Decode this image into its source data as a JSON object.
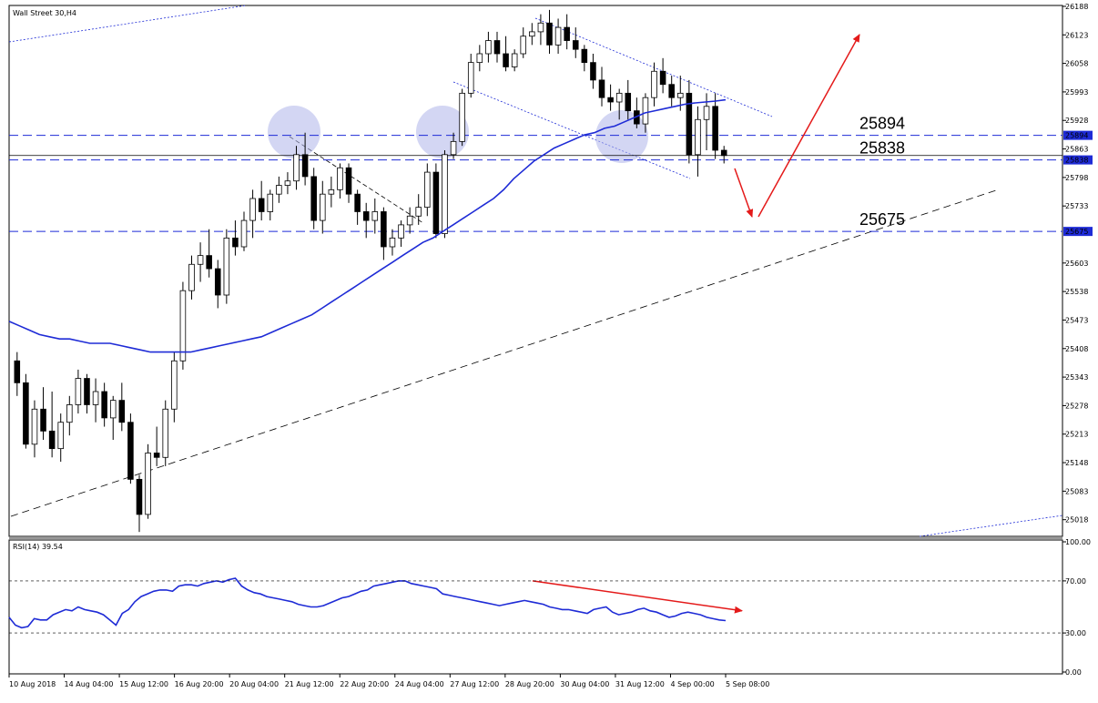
{
  "title": "Wall Street 30,H4",
  "rsi_title": "RSI(14) 39.54",
  "colors": {
    "candle_up": "#ffffff",
    "candle_down": "#000000",
    "ma": "#1e2bd6",
    "rsi": "#1e2bd6",
    "level": "#1e2bd6",
    "price_line": "#000000",
    "arrow": "#e41a1a",
    "circle": "#aeb4ea",
    "tag_bg": "#1e2bd6"
  },
  "levels": [
    {
      "value": 25894,
      "label": "25894",
      "tag": "25894"
    },
    {
      "value": 25838,
      "label": "25838",
      "tag": "25838"
    },
    {
      "value": 25675,
      "label": "25675",
      "tag": "25675"
    }
  ],
  "chart_data": [
    {
      "type": "candlestick",
      "title": "Wall Street 30,H4",
      "ylim": [
        24980,
        26190
      ],
      "y_ticks": [
        26188,
        26123,
        26058,
        25993,
        25928,
        25863,
        25798,
        25733,
        25603,
        25538,
        25473,
        25408,
        25343,
        25278,
        25213,
        25148,
        25083,
        25018
      ],
      "x_ticks": [
        "10 Aug 2018",
        "14 Aug 04:00",
        "15 Aug 12:00",
        "16 Aug 20:00",
        "20 Aug 04:00",
        "21 Aug 12:00",
        "22 Aug 20:00",
        "24 Aug 04:00",
        "27 Aug 12:00",
        "28 Aug 20:00",
        "30 Aug 04:00",
        "31 Aug 12:00",
        "4 Sep 00:00",
        "5 Sep 08:00"
      ],
      "current_price": 25848,
      "candles": [
        [
          25380,
          25400,
          25300,
          25330
        ],
        [
          25330,
          25350,
          25180,
          25190
        ],
        [
          25190,
          25290,
          25160,
          25270
        ],
        [
          25270,
          25320,
          25200,
          25220
        ],
        [
          25220,
          25310,
          25160,
          25180
        ],
        [
          25180,
          25260,
          25150,
          25240
        ],
        [
          25240,
          25300,
          25210,
          25280
        ],
        [
          25280,
          25360,
          25260,
          25340
        ],
        [
          25340,
          25350,
          25260,
          25280
        ],
        [
          25280,
          25340,
          25240,
          25310
        ],
        [
          25310,
          25330,
          25230,
          25250
        ],
        [
          25250,
          25300,
          25200,
          25290
        ],
        [
          25290,
          25330,
          25220,
          25240
        ],
        [
          25240,
          25260,
          25100,
          25110
        ],
        [
          25110,
          25120,
          24990,
          25030
        ],
        [
          25030,
          25190,
          25020,
          25170
        ],
        [
          25170,
          25230,
          25140,
          25160
        ],
        [
          25160,
          25290,
          25140,
          25270
        ],
        [
          25270,
          25400,
          25240,
          25380
        ],
        [
          25380,
          25560,
          25360,
          25540
        ],
        [
          25540,
          25620,
          25520,
          25600
        ],
        [
          25600,
          25650,
          25560,
          25620
        ],
        [
          25620,
          25680,
          25570,
          25590
        ],
        [
          25590,
          25610,
          25500,
          25530
        ],
        [
          25530,
          25680,
          25510,
          25660
        ],
        [
          25660,
          25700,
          25620,
          25640
        ],
        [
          25640,
          25720,
          25630,
          25700
        ],
        [
          25700,
          25770,
          25660,
          25750
        ],
        [
          25750,
          25790,
          25700,
          25720
        ],
        [
          25720,
          25770,
          25700,
          25760
        ],
        [
          25760,
          25800,
          25740,
          25780
        ],
        [
          25780,
          25810,
          25760,
          25790
        ],
        [
          25790,
          25870,
          25770,
          25850
        ],
        [
          25850,
          25900,
          25780,
          25800
        ],
        [
          25800,
          25820,
          25680,
          25700
        ],
        [
          25700,
          25790,
          25670,
          25760
        ],
        [
          25760,
          25800,
          25730,
          25770
        ],
        [
          25770,
          25830,
          25750,
          25820
        ],
        [
          25820,
          25830,
          25740,
          25760
        ],
        [
          25760,
          25770,
          25690,
          25720
        ],
        [
          25720,
          25740,
          25660,
          25700
        ],
        [
          25700,
          25750,
          25670,
          25720
        ],
        [
          25720,
          25730,
          25610,
          25640
        ],
        [
          25640,
          25680,
          25620,
          25660
        ],
        [
          25660,
          25700,
          25640,
          25690
        ],
        [
          25690,
          25730,
          25670,
          25710
        ],
        [
          25710,
          25760,
          25690,
          25730
        ],
        [
          25730,
          25830,
          25710,
          25810
        ],
        [
          25810,
          25830,
          25660,
          25670
        ],
        [
          25670,
          25860,
          25660,
          25850
        ],
        [
          25850,
          25900,
          25840,
          25880
        ],
        [
          25880,
          26000,
          25870,
          25990
        ],
        [
          25990,
          26080,
          25980,
          26060
        ],
        [
          26060,
          26100,
          26040,
          26080
        ],
        [
          26080,
          26130,
          26060,
          26110
        ],
        [
          26110,
          26130,
          26060,
          26080
        ],
        [
          26080,
          26120,
          26040,
          26050
        ],
        [
          26050,
          26090,
          26040,
          26080
        ],
        [
          26080,
          26140,
          26070,
          26120
        ],
        [
          26120,
          26150,
          26100,
          26130
        ],
        [
          26130,
          26170,
          26100,
          26150
        ],
        [
          26150,
          26180,
          26080,
          26100
        ],
        [
          26100,
          26160,
          26080,
          26140
        ],
        [
          26140,
          26170,
          26090,
          26110
        ],
        [
          26110,
          26140,
          26070,
          26090
        ],
        [
          26090,
          26100,
          26040,
          26060
        ],
        [
          26060,
          26080,
          26000,
          26020
        ],
        [
          26020,
          26050,
          25960,
          25980
        ],
        [
          25980,
          26010,
          25950,
          25970
        ],
        [
          25970,
          26000,
          25930,
          25990
        ],
        [
          25990,
          26020,
          25930,
          25950
        ],
        [
          25950,
          25980,
          25910,
          25920
        ],
        [
          25920,
          25990,
          25900,
          25980
        ],
        [
          25980,
          26060,
          25960,
          26040
        ],
        [
          26040,
          26070,
          25990,
          26010
        ],
        [
          26010,
          26030,
          25960,
          25980
        ],
        [
          25980,
          26030,
          25950,
          25990
        ],
        [
          25990,
          26020,
          25830,
          25850
        ],
        [
          25850,
          25960,
          25800,
          25930
        ],
        [
          25930,
          25990,
          25860,
          25960
        ],
        [
          25960,
          25990,
          25840,
          25860
        ],
        [
          25860,
          25870,
          25830,
          25848
        ]
      ],
      "series": [
        {
          "name": "",
          "values": [
            25470,
            25460,
            25450,
            25440,
            25435,
            25430,
            25430,
            25425,
            25420,
            25420,
            25420,
            25415,
            25410,
            25405,
            25400,
            25400,
            25400,
            25400,
            25400,
            25405,
            25410,
            25415,
            25420,
            25425,
            25430,
            25435,
            25445,
            25455,
            25465,
            25475,
            25485,
            25500,
            25515,
            25530,
            25545,
            25560,
            25575,
            25590,
            25605,
            25620,
            25635,
            25650,
            25660,
            25675,
            25690,
            25705,
            25720,
            25735,
            25750,
            25770,
            25795,
            25815,
            25835,
            25850,
            25865,
            25875,
            25885,
            25895,
            25900,
            25910,
            25915,
            25925,
            25935,
            25945,
            25950,
            25955,
            25960,
            25965,
            25968,
            25970,
            25972,
            25975
          ]
        }
      ]
    },
    {
      "type": "line",
      "title": "RSI(14) 39.54",
      "ylim": [
        0,
        100
      ],
      "y_ticks": [
        100.0,
        70.0,
        30.0,
        0.0
      ],
      "y_tick_labels": [
        "100.00",
        "70.00",
        "30.00",
        "0.00"
      ],
      "series": [
        {
          "name": "RSI(14)",
          "values": [
            42,
            36,
            34,
            35,
            41,
            40,
            40,
            44,
            46,
            48,
            47,
            50,
            48,
            47,
            46,
            44,
            40,
            36,
            45,
            48,
            54,
            58,
            60,
            62,
            63,
            63,
            62,
            66,
            67,
            67,
            66,
            68,
            69,
            70,
            69,
            71,
            72,
            66,
            63,
            61,
            60,
            58,
            57,
            56,
            55,
            54,
            52,
            51,
            50,
            50,
            51,
            53,
            55,
            57,
            58,
            60,
            62,
            63,
            66,
            67,
            68,
            69,
            70,
            70,
            68,
            67,
            66,
            65,
            64,
            60,
            59,
            58,
            57,
            56,
            55,
            54,
            53,
            52,
            51,
            52,
            53,
            54,
            55,
            54,
            53,
            52,
            50,
            49,
            48,
            48,
            47,
            46,
            45,
            48,
            49,
            50,
            46,
            44,
            45,
            46,
            48,
            49,
            47,
            46,
            44,
            42,
            43,
            45,
            46,
            45,
            44,
            42,
            41,
            40,
            39.54
          ]
        }
      ],
      "trend_annotation": {
        "from": 70,
        "to": 47
      }
    }
  ]
}
